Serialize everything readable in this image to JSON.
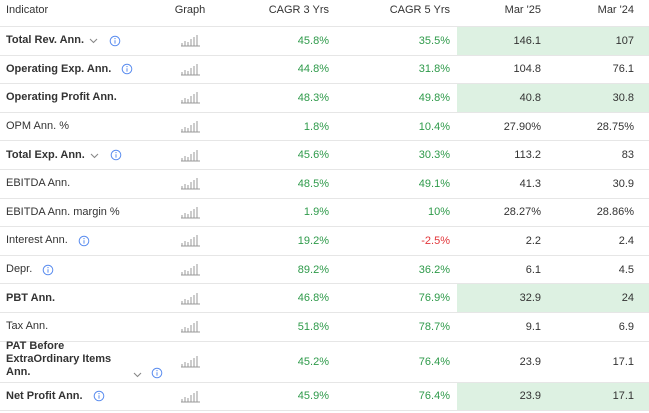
{
  "table": {
    "header": [
      "Indicator",
      "Graph",
      "CAGR 3 Yrs",
      "CAGR 5 Yrs",
      "Mar '25",
      "Mar '24"
    ],
    "rows": [
      {
        "indicator": "Total Rev. Ann.",
        "cagr3": "45.8%",
        "cagr5": "35.5%",
        "mar25": "146.1",
        "mar24": "107",
        "bold": true,
        "expand": true,
        "info": true,
        "highlight": true
      },
      {
        "indicator": "Operating Exp. Ann.",
        "cagr3": "44.8%",
        "cagr5": "31.8%",
        "mar25": "104.8",
        "mar24": "76.1",
        "bold": true,
        "expand": false,
        "info": true,
        "highlight": false
      },
      {
        "indicator": "Operating Profit Ann.",
        "cagr3": "48.3%",
        "cagr5": "49.8%",
        "mar25": "40.8",
        "mar24": "30.8",
        "bold": true,
        "expand": false,
        "info": false,
        "highlight": true
      },
      {
        "indicator": "OPM Ann. %",
        "cagr3": "1.8%",
        "cagr5": "10.4%",
        "mar25": "27.90%",
        "mar24": "28.75%",
        "bold": false,
        "expand": false,
        "info": false,
        "highlight": false
      },
      {
        "indicator": "Total Exp. Ann.",
        "cagr3": "45.6%",
        "cagr5": "30.3%",
        "mar25": "113.2",
        "mar24": "83",
        "bold": true,
        "expand": true,
        "info": true,
        "highlight": false
      },
      {
        "indicator": "EBITDA Ann.",
        "cagr3": "48.5%",
        "cagr5": "49.1%",
        "mar25": "41.3",
        "mar24": "30.9",
        "bold": false,
        "expand": false,
        "info": false,
        "highlight": false
      },
      {
        "indicator": "EBITDA Ann. margin %",
        "cagr3": "1.9%",
        "cagr5": "10%",
        "mar25": "28.27%",
        "mar24": "28.86%",
        "bold": false,
        "expand": false,
        "info": false,
        "highlight": false
      },
      {
        "indicator": "Interest Ann.",
        "cagr3": "19.2%",
        "cagr5": "-2.5%",
        "mar25": "2.2",
        "mar24": "2.4",
        "bold": false,
        "expand": false,
        "info": true,
        "highlight": false
      },
      {
        "indicator": "Depr.",
        "cagr3": "89.2%",
        "cagr5": "36.2%",
        "mar25": "6.1",
        "mar24": "4.5",
        "bold": false,
        "expand": false,
        "info": true,
        "highlight": false
      },
      {
        "indicator": "PBT Ann.",
        "cagr3": "46.8%",
        "cagr5": "76.9%",
        "mar25": "32.9",
        "mar24": "24",
        "bold": true,
        "expand": false,
        "info": false,
        "highlight": true
      },
      {
        "indicator": "Tax Ann.",
        "cagr3": "51.8%",
        "cagr5": "78.7%",
        "mar25": "9.1",
        "mar24": "6.9",
        "bold": false,
        "expand": false,
        "info": false,
        "highlight": false
      },
      {
        "indicator": "PAT Before ExtraOrdinary Items Ann.",
        "cagr3": "45.2%",
        "cagr5": "76.4%",
        "mar25": "23.9",
        "mar24": "17.1",
        "bold": true,
        "expand": true,
        "info": true,
        "highlight": false
      },
      {
        "indicator": "Net Profit Ann.",
        "cagr3": "45.9%",
        "cagr5": "76.4%",
        "mar25": "23.9",
        "mar24": "17.1",
        "bold": true,
        "expand": false,
        "info": true,
        "highlight": true
      }
    ]
  }
}
